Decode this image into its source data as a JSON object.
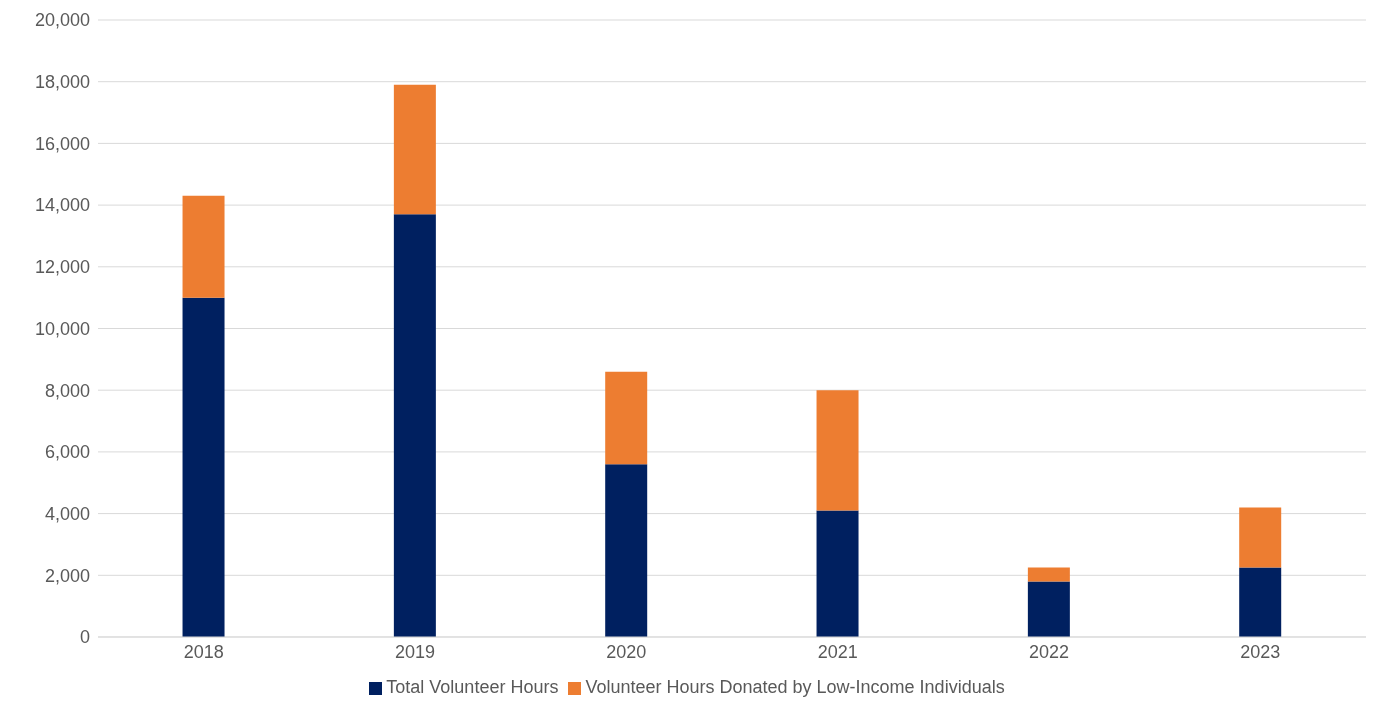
{
  "chart_data": {
    "type": "bar",
    "stacked": true,
    "categories": [
      "2018",
      "2019",
      "2020",
      "2021",
      "2022",
      "2023"
    ],
    "series": [
      {
        "name": "Total Volunteer Hours",
        "color": "#002060",
        "values": [
          11000,
          13700,
          5600,
          4100,
          1800,
          2250
        ]
      },
      {
        "name": "Volunteer Hours Donated by Low-Income Individuals",
        "color": "#ed7d31",
        "values": [
          3300,
          4200,
          3000,
          3900,
          450,
          1950
        ]
      }
    ],
    "ylim": [
      0,
      20000
    ],
    "yticks": [
      0,
      {
        "value": 2000,
        "label": "2,000"
      },
      {
        "value": 4000,
        "label": "4,000"
      },
      {
        "value": 6000,
        "label": "6,000"
      },
      {
        "value": 8000,
        "label": "8,000"
      },
      {
        "value": 10000,
        "label": "10,000"
      },
      {
        "value": 12000,
        "label": "12,000"
      },
      {
        "value": 14000,
        "label": "14,000"
      },
      {
        "value": 16000,
        "label": "16,000"
      },
      {
        "value": 18000,
        "label": "18,000"
      },
      {
        "value": 20000,
        "label": "20,000"
      }
    ],
    "grid": "y",
    "legend": "bottom"
  }
}
